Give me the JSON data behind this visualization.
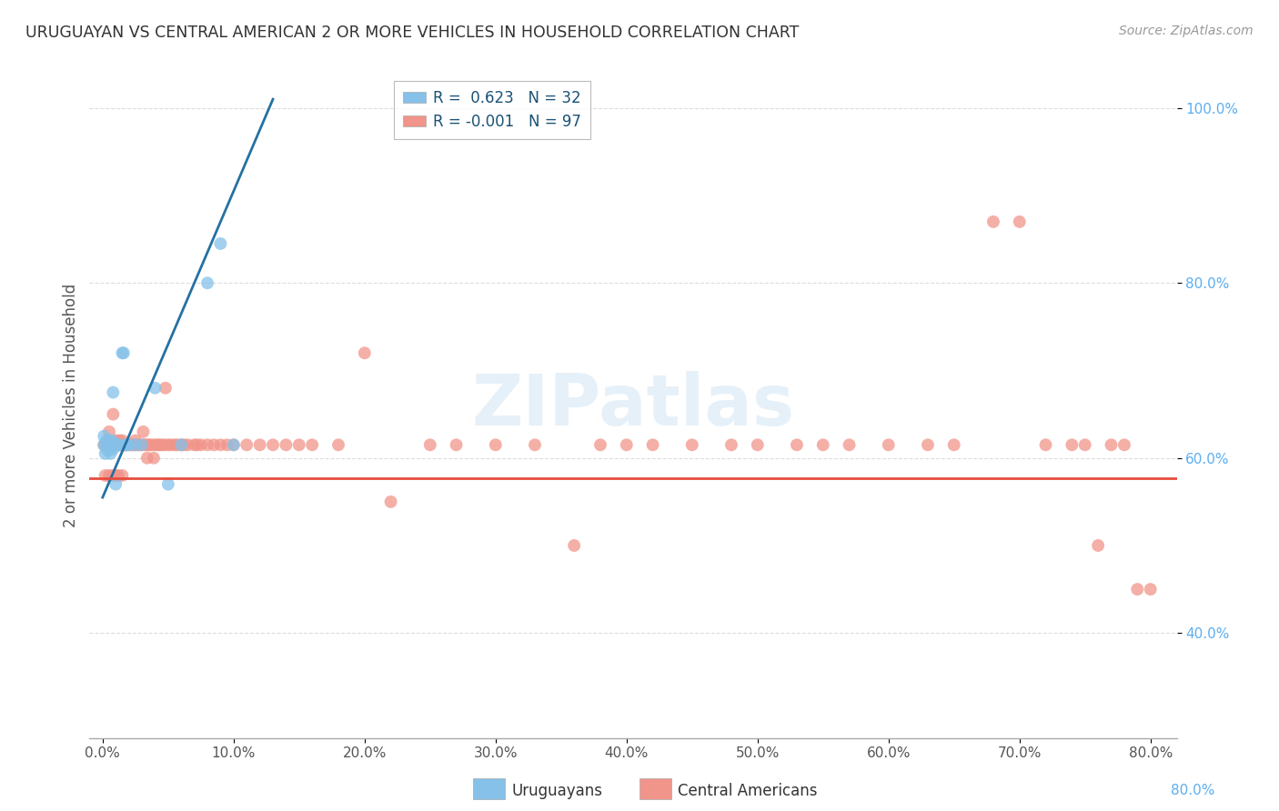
{
  "title": "URUGUAYAN VS CENTRAL AMERICAN 2 OR MORE VEHICLES IN HOUSEHOLD CORRELATION CHART",
  "source": "Source: ZipAtlas.com",
  "xlim": [
    -0.01,
    0.82
  ],
  "ylim": [
    0.28,
    1.04
  ],
  "legend_label1": "Uruguayans",
  "legend_label2": "Central Americans",
  "r1": "0.623",
  "n1": "32",
  "r2": "-0.001",
  "n2": "97",
  "uruguayan_color": "#85C1E9",
  "central_color": "#F1948A",
  "trendline1_color": "#2471A3",
  "trendline2_color": "#E74C3C",
  "watermark": "ZIPatlas",
  "background_color": "#FFFFFF",
  "grid_color": "#DDDDDD",
  "uruguayan_x": [
    0.001,
    0.001,
    0.002,
    0.003,
    0.003,
    0.004,
    0.005,
    0.005,
    0.006,
    0.006,
    0.007,
    0.007,
    0.008,
    0.008,
    0.009,
    0.01,
    0.011,
    0.012,
    0.013,
    0.015,
    0.016,
    0.018,
    0.019,
    0.02,
    0.025,
    0.03,
    0.04,
    0.05,
    0.06,
    0.08,
    0.09,
    0.1
  ],
  "uruguayan_y": [
    0.615,
    0.625,
    0.605,
    0.61,
    0.62,
    0.615,
    0.61,
    0.62,
    0.615,
    0.605,
    0.62,
    0.615,
    0.61,
    0.675,
    0.615,
    0.57,
    0.615,
    0.615,
    0.615,
    0.72,
    0.72,
    0.615,
    0.615,
    0.615,
    0.615,
    0.615,
    0.68,
    0.57,
    0.615,
    0.8,
    0.845,
    0.615
  ],
  "central_x": [
    0.001,
    0.002,
    0.003,
    0.004,
    0.005,
    0.005,
    0.006,
    0.007,
    0.008,
    0.008,
    0.009,
    0.01,
    0.01,
    0.011,
    0.012,
    0.013,
    0.013,
    0.014,
    0.015,
    0.015,
    0.016,
    0.017,
    0.018,
    0.018,
    0.02,
    0.022,
    0.023,
    0.025,
    0.025,
    0.027,
    0.028,
    0.03,
    0.031,
    0.032,
    0.033,
    0.034,
    0.035,
    0.036,
    0.038,
    0.039,
    0.04,
    0.042,
    0.043,
    0.045,
    0.047,
    0.048,
    0.05,
    0.052,
    0.055,
    0.057,
    0.06,
    0.062,
    0.065,
    0.07,
    0.072,
    0.075,
    0.08,
    0.085,
    0.09,
    0.095,
    0.1,
    0.11,
    0.12,
    0.13,
    0.14,
    0.15,
    0.16,
    0.18,
    0.2,
    0.22,
    0.25,
    0.27,
    0.3,
    0.33,
    0.36,
    0.38,
    0.4,
    0.42,
    0.45,
    0.48,
    0.5,
    0.53,
    0.55,
    0.57,
    0.6,
    0.63,
    0.65,
    0.68,
    0.7,
    0.72,
    0.74,
    0.75,
    0.76,
    0.77,
    0.78,
    0.79,
    0.8
  ],
  "central_y": [
    0.615,
    0.58,
    0.615,
    0.615,
    0.58,
    0.63,
    0.615,
    0.615,
    0.58,
    0.65,
    0.615,
    0.58,
    0.62,
    0.615,
    0.58,
    0.615,
    0.62,
    0.615,
    0.58,
    0.62,
    0.615,
    0.615,
    0.615,
    0.615,
    0.615,
    0.615,
    0.615,
    0.615,
    0.62,
    0.615,
    0.615,
    0.615,
    0.63,
    0.615,
    0.615,
    0.6,
    0.615,
    0.615,
    0.615,
    0.6,
    0.615,
    0.615,
    0.615,
    0.615,
    0.615,
    0.68,
    0.615,
    0.615,
    0.615,
    0.615,
    0.615,
    0.615,
    0.615,
    0.615,
    0.615,
    0.615,
    0.615,
    0.615,
    0.615,
    0.615,
    0.615,
    0.615,
    0.615,
    0.615,
    0.615,
    0.615,
    0.615,
    0.615,
    0.72,
    0.55,
    0.615,
    0.615,
    0.615,
    0.615,
    0.5,
    0.615,
    0.615,
    0.615,
    0.615,
    0.615,
    0.615,
    0.615,
    0.615,
    0.615,
    0.615,
    0.615,
    0.615,
    0.87,
    0.87,
    0.615,
    0.615,
    0.615,
    0.5,
    0.615,
    0.615,
    0.45,
    0.45
  ],
  "trendline1_x0": 0.0,
  "trendline1_y0": 0.555,
  "trendline1_x1": 0.13,
  "trendline1_y1": 1.01,
  "trendline2_y": 0.577
}
